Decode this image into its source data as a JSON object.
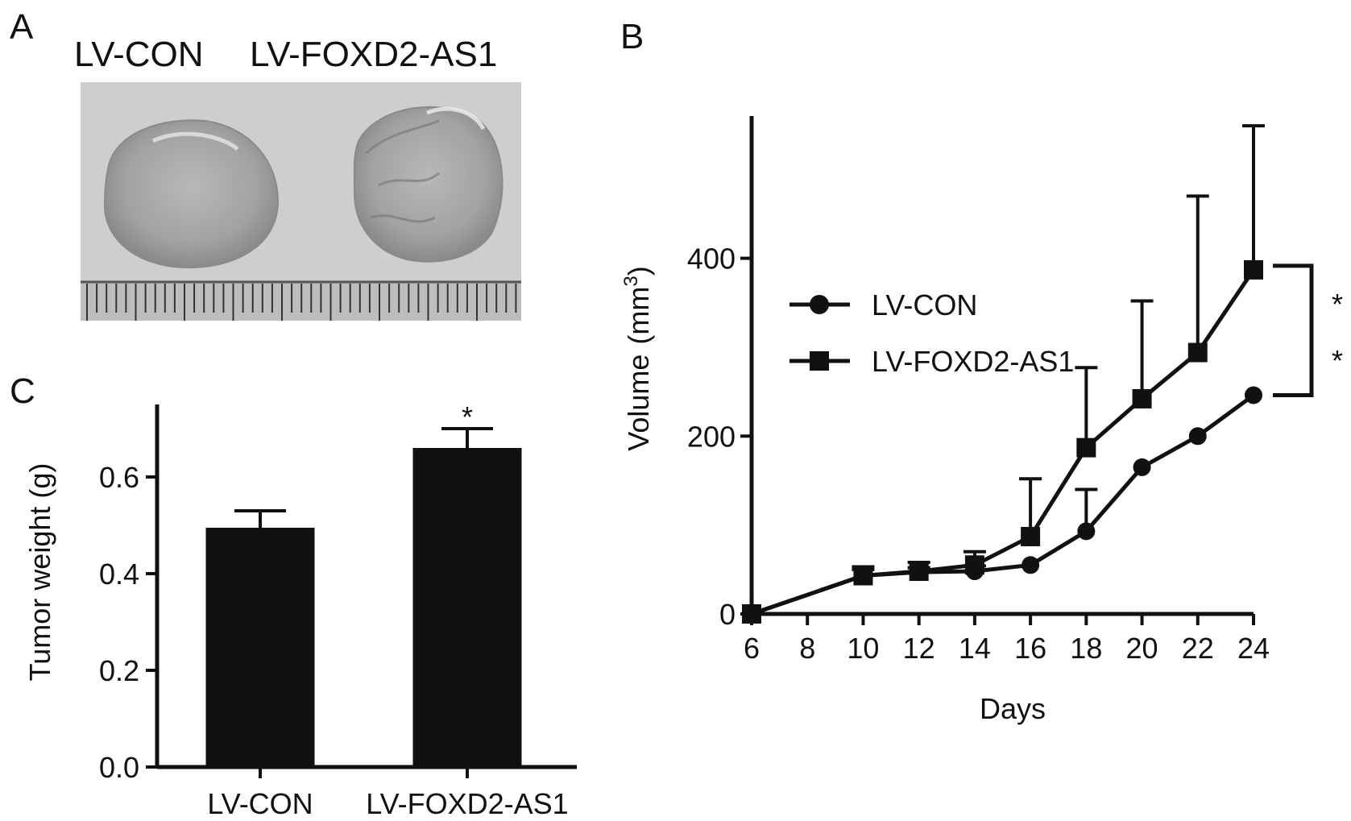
{
  "panels": {
    "a": {
      "label": "A",
      "photo_labels": [
        "LV-CON",
        "LV-FOXD2-AS1"
      ]
    },
    "b": {
      "label": "B"
    },
    "c": {
      "label": "C"
    }
  },
  "colors": {
    "ink": "#111111",
    "photo_bg": "#d4d4d4",
    "tumor": "#a9a9a9"
  },
  "chart_data": [
    {
      "id": "volume",
      "type": "line",
      "xlabel": "Days",
      "ylabel": "Volume",
      "ylabel_unit": "mm",
      "ylabel_unit_sup": "3",
      "xlim": [
        6,
        24
      ],
      "ylim": [
        0,
        560
      ],
      "x_ticks": [
        6,
        8,
        10,
        12,
        14,
        16,
        18,
        20,
        22,
        24
      ],
      "y_ticks": [
        0,
        200,
        400
      ],
      "grid": false,
      "legend_position": "upper-left",
      "x": [
        6,
        10,
        12,
        14,
        16,
        18,
        20,
        22,
        24
      ],
      "series": [
        {
          "name": "LV-CON",
          "marker": "circle",
          "values": [
            0,
            43,
            47,
            48,
            55,
            93,
            165,
            200,
            246
          ],
          "err_upper": [
            0,
            50,
            52,
            54,
            55,
            140,
            165,
            200,
            246
          ]
        },
        {
          "name": "LV-FOXD2-AS1",
          "marker": "square",
          "values": [
            0,
            43,
            48,
            55,
            87,
            187,
            242,
            294,
            387
          ],
          "err_upper": [
            0,
            53,
            58,
            70,
            152,
            277,
            352,
            470,
            549
          ]
        }
      ],
      "significance": {
        "label": "**",
        "between": [
          246,
          387
        ]
      }
    },
    {
      "id": "weight",
      "type": "bar",
      "ylabel": "Tumor weight (g)",
      "xlabel": "",
      "categories": [
        "LV-CON",
        "LV-FOXD2-AS1"
      ],
      "values": [
        0.495,
        0.66
      ],
      "err_upper": [
        0.53,
        0.7
      ],
      "ylim": [
        0,
        0.75
      ],
      "y_ticks": [
        0.0,
        0.2,
        0.4,
        0.6
      ],
      "grid": false,
      "significance": [
        "",
        "*"
      ]
    }
  ]
}
